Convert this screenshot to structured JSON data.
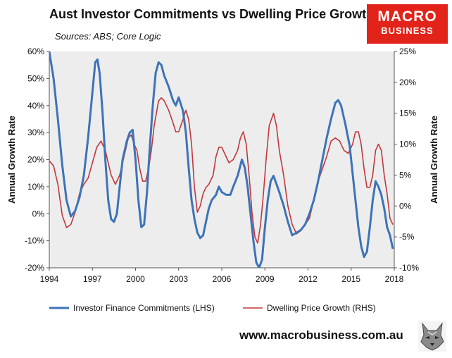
{
  "header": {
    "title": "Aust Investor Commitments vs Dwelling Price Growth",
    "sources": "Sources: ABS; Core Logic"
  },
  "logo": {
    "line1": "MACRO",
    "line2": "BUSINESS",
    "color": "#e2231a"
  },
  "footer": {
    "url": "www.macrobusiness.com.au",
    "mascot_icon": "wolf-icon"
  },
  "chart_data": {
    "type": "line",
    "xlim": [
      1994,
      2018
    ],
    "x_ticks": [
      "1994",
      "1997",
      "2000",
      "2003",
      "2006",
      "2009",
      "2012",
      "2015",
      "2018"
    ],
    "y_left": {
      "label": "Annual Growth Rate",
      "lim": [
        -20,
        60
      ],
      "ticks": [
        "60%",
        "50%",
        "40%",
        "30%",
        "20%",
        "10%",
        "0%",
        "-10%",
        "-20%"
      ]
    },
    "y_right": {
      "label": "Annual Growth Rate",
      "lim": [
        -10,
        25
      ],
      "ticks": [
        "25%",
        "20%",
        "15%",
        "10%",
        "5%",
        "0%",
        "-5%",
        "-10%"
      ]
    },
    "grid": false,
    "plot_background": "#ededed",
    "legend_position": "bottom",
    "series": [
      {
        "name": "Investor Finance Commitments (LHS)",
        "axis": "left",
        "color": "#3d73b8",
        "points": [
          [
            1994.0,
            60
          ],
          [
            1994.3,
            50
          ],
          [
            1994.6,
            35
          ],
          [
            1994.9,
            18
          ],
          [
            1995.2,
            5
          ],
          [
            1995.5,
            -1
          ],
          [
            1995.8,
            1
          ],
          [
            1996.1,
            6
          ],
          [
            1996.4,
            14
          ],
          [
            1996.7,
            28
          ],
          [
            1997.0,
            45
          ],
          [
            1997.2,
            56
          ],
          [
            1997.35,
            57
          ],
          [
            1997.5,
            52
          ],
          [
            1997.7,
            38
          ],
          [
            1997.9,
            20
          ],
          [
            1998.1,
            5
          ],
          [
            1998.3,
            -2
          ],
          [
            1998.5,
            -3
          ],
          [
            1998.7,
            0
          ],
          [
            1998.9,
            10
          ],
          [
            1999.1,
            20
          ],
          [
            1999.4,
            27
          ],
          [
            1999.6,
            30
          ],
          [
            1999.8,
            31
          ],
          [
            2000.0,
            20
          ],
          [
            2000.2,
            5
          ],
          [
            2000.4,
            -5
          ],
          [
            2000.6,
            -4
          ],
          [
            2000.8,
            8
          ],
          [
            2001.0,
            25
          ],
          [
            2001.2,
            40
          ],
          [
            2001.4,
            52
          ],
          [
            2001.6,
            56
          ],
          [
            2001.8,
            55
          ],
          [
            2002.0,
            51
          ],
          [
            2002.3,
            47
          ],
          [
            2002.6,
            42
          ],
          [
            2002.8,
            40
          ],
          [
            2003.0,
            43
          ],
          [
            2003.3,
            38
          ],
          [
            2003.5,
            30
          ],
          [
            2003.7,
            17
          ],
          [
            2003.9,
            5
          ],
          [
            2004.1,
            -2
          ],
          [
            2004.3,
            -7
          ],
          [
            2004.5,
            -9
          ],
          [
            2004.7,
            -8
          ],
          [
            2004.9,
            -3
          ],
          [
            2005.1,
            2
          ],
          [
            2005.3,
            5
          ],
          [
            2005.6,
            7
          ],
          [
            2005.8,
            10
          ],
          [
            2006.0,
            8
          ],
          [
            2006.3,
            7
          ],
          [
            2006.6,
            7
          ],
          [
            2006.8,
            10
          ],
          [
            2007.1,
            14
          ],
          [
            2007.4,
            20
          ],
          [
            2007.6,
            17
          ],
          [
            2007.8,
            10
          ],
          [
            2008.0,
            0
          ],
          [
            2008.2,
            -10
          ],
          [
            2008.4,
            -18
          ],
          [
            2008.6,
            -20
          ],
          [
            2008.8,
            -17
          ],
          [
            2009.0,
            -5
          ],
          [
            2009.2,
            5
          ],
          [
            2009.4,
            12
          ],
          [
            2009.6,
            14
          ],
          [
            2009.8,
            11
          ],
          [
            2010.0,
            8
          ],
          [
            2010.3,
            3
          ],
          [
            2010.6,
            -3
          ],
          [
            2010.9,
            -8
          ],
          [
            2011.2,
            -7
          ],
          [
            2011.5,
            -6
          ],
          [
            2011.8,
            -4
          ],
          [
            2012.1,
            0
          ],
          [
            2012.4,
            5
          ],
          [
            2012.7,
            12
          ],
          [
            2013.0,
            20
          ],
          [
            2013.3,
            28
          ],
          [
            2013.6,
            35
          ],
          [
            2013.9,
            41
          ],
          [
            2014.1,
            42
          ],
          [
            2014.3,
            40
          ],
          [
            2014.6,
            33
          ],
          [
            2014.9,
            25
          ],
          [
            2015.1,
            15
          ],
          [
            2015.3,
            5
          ],
          [
            2015.5,
            -5
          ],
          [
            2015.7,
            -12
          ],
          [
            2015.9,
            -16
          ],
          [
            2016.1,
            -14
          ],
          [
            2016.3,
            -5
          ],
          [
            2016.5,
            5
          ],
          [
            2016.7,
            12
          ],
          [
            2016.9,
            10
          ],
          [
            2017.1,
            7
          ],
          [
            2017.3,
            2
          ],
          [
            2017.5,
            -5
          ],
          [
            2017.7,
            -8
          ],
          [
            2017.9,
            -13
          ]
        ]
      },
      {
        "name": "Dwelling Price Growth (RHS)",
        "axis": "right",
        "color": "#c0383d",
        "points": [
          [
            1994.0,
            7.3
          ],
          [
            1994.3,
            6.5
          ],
          [
            1994.6,
            3.5
          ],
          [
            1994.9,
            -1.5
          ],
          [
            1995.2,
            -3.5
          ],
          [
            1995.5,
            -3
          ],
          [
            1995.8,
            -1
          ],
          [
            1996.1,
            2
          ],
          [
            1996.4,
            3.5
          ],
          [
            1996.7,
            4.5
          ],
          [
            1997.0,
            7
          ],
          [
            1997.3,
            9.5
          ],
          [
            1997.6,
            10.5
          ],
          [
            1997.9,
            9
          ],
          [
            1998.1,
            7
          ],
          [
            1998.3,
            5
          ],
          [
            1998.6,
            3.5
          ],
          [
            1998.9,
            5
          ],
          [
            1999.2,
            8
          ],
          [
            1999.5,
            11
          ],
          [
            1999.7,
            11.5
          ],
          [
            1999.9,
            10
          ],
          [
            2000.1,
            9
          ],
          [
            2000.3,
            6
          ],
          [
            2000.5,
            4
          ],
          [
            2000.7,
            4
          ],
          [
            2000.9,
            6
          ],
          [
            2001.1,
            9
          ],
          [
            2001.3,
            13
          ],
          [
            2001.6,
            17
          ],
          [
            2001.8,
            17.5
          ],
          [
            2002.0,
            17
          ],
          [
            2002.3,
            15.5
          ],
          [
            2002.6,
            13.5
          ],
          [
            2002.8,
            12
          ],
          [
            2003.0,
            12
          ],
          [
            2003.3,
            14
          ],
          [
            2003.5,
            15.5
          ],
          [
            2003.7,
            14
          ],
          [
            2003.9,
            10
          ],
          [
            2004.1,
            3
          ],
          [
            2004.3,
            -1
          ],
          [
            2004.5,
            0
          ],
          [
            2004.7,
            2
          ],
          [
            2004.9,
            3
          ],
          [
            2005.1,
            3.5
          ],
          [
            2005.4,
            5
          ],
          [
            2005.6,
            8
          ],
          [
            2005.8,
            9.5
          ],
          [
            2006.0,
            9.5
          ],
          [
            2006.3,
            8
          ],
          [
            2006.5,
            7
          ],
          [
            2006.8,
            7.5
          ],
          [
            2007.1,
            9
          ],
          [
            2007.3,
            11
          ],
          [
            2007.5,
            12
          ],
          [
            2007.7,
            10
          ],
          [
            2007.9,
            5
          ],
          [
            2008.1,
            -1
          ],
          [
            2008.3,
            -5
          ],
          [
            2008.5,
            -6
          ],
          [
            2008.7,
            -3
          ],
          [
            2008.9,
            2
          ],
          [
            2009.1,
            8
          ],
          [
            2009.3,
            13
          ],
          [
            2009.6,
            15
          ],
          [
            2009.8,
            13
          ],
          [
            2010.0,
            9
          ],
          [
            2010.3,
            5
          ],
          [
            2010.6,
            0
          ],
          [
            2010.9,
            -3
          ],
          [
            2011.2,
            -4.5
          ],
          [
            2011.5,
            -4
          ],
          [
            2011.8,
            -3
          ],
          [
            2012.1,
            -2
          ],
          [
            2012.4,
            1
          ],
          [
            2012.7,
            4
          ],
          [
            2013.0,
            6
          ],
          [
            2013.3,
            8
          ],
          [
            2013.6,
            10.5
          ],
          [
            2013.9,
            11
          ],
          [
            2014.2,
            10.5
          ],
          [
            2014.5,
            9
          ],
          [
            2014.8,
            8.5
          ],
          [
            2015.1,
            10
          ],
          [
            2015.3,
            12
          ],
          [
            2015.5,
            12
          ],
          [
            2015.7,
            10
          ],
          [
            2015.9,
            6
          ],
          [
            2016.1,
            3
          ],
          [
            2016.3,
            3
          ],
          [
            2016.5,
            5
          ],
          [
            2016.7,
            9
          ],
          [
            2016.9,
            10
          ],
          [
            2017.1,
            9
          ],
          [
            2017.3,
            5
          ],
          [
            2017.5,
            2
          ],
          [
            2017.7,
            -2
          ],
          [
            2017.9,
            -3
          ]
        ]
      }
    ]
  }
}
